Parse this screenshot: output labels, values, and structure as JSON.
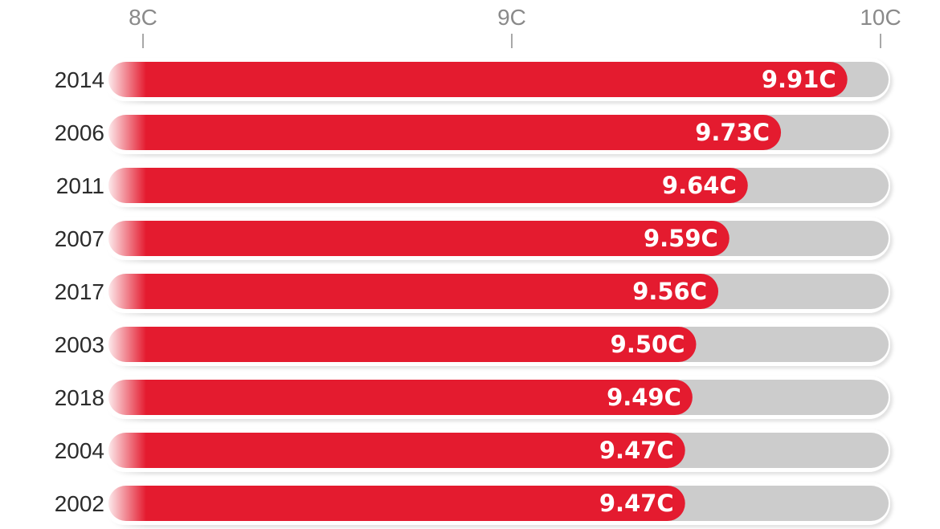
{
  "chart_data": {
    "type": "bar",
    "orientation": "horizontal",
    "categories": [
      "2014",
      "2006",
      "2011",
      "2007",
      "2017",
      "2003",
      "2018",
      "2004",
      "2002"
    ],
    "values": [
      9.91,
      9.73,
      9.64,
      9.59,
      9.56,
      9.5,
      9.49,
      9.47,
      9.47
    ],
    "value_labels": [
      "9.91C",
      "9.73C",
      "9.64C",
      "9.59C",
      "9.56C",
      "9.50C",
      "9.49C",
      "9.47C",
      "9.47C"
    ],
    "xlim": [
      8,
      10
    ],
    "x_ticks": [
      8,
      9,
      10
    ],
    "x_tick_labels": [
      "8C",
      "9C",
      "10C"
    ],
    "title": "",
    "xlabel": "",
    "ylabel": "",
    "grid": false,
    "legend": "none",
    "colors": {
      "bar": "#e41b2f",
      "track": "#cccccc",
      "tick_text": "#8a8a8a",
      "label_text": "#2b2b2b",
      "value_text": "#ffffff"
    }
  }
}
